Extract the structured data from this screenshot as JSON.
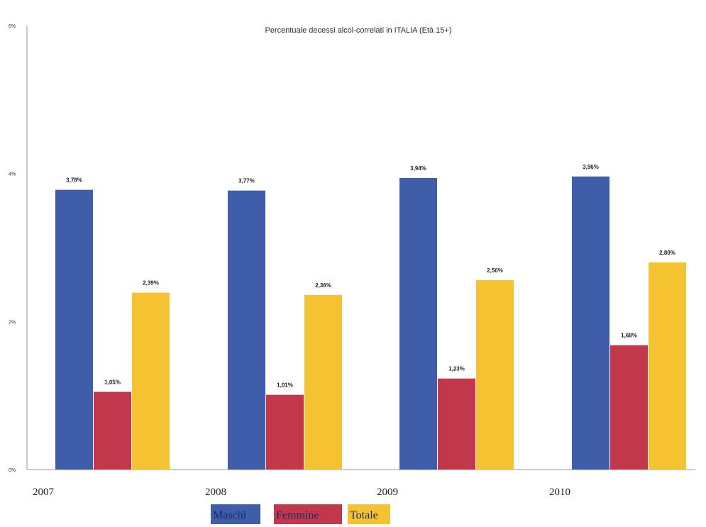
{
  "chart_data": {
    "type": "bar",
    "title": "Percentuale decessi alcol-correlati in ITALIA (Età 15+)",
    "xlabel": "",
    "ylabel": "",
    "categories": [
      "2007",
      "2008",
      "2009",
      "2010"
    ],
    "ylim": [
      0,
      6
    ],
    "yticks": [
      0,
      2,
      4,
      6
    ],
    "ytick_labels": [
      "0%",
      "2%",
      "4%",
      "6%"
    ],
    "grid": false,
    "legend_position": "bottom",
    "series": [
      {
        "name": "Maschi",
        "color": "#3f5da8",
        "values": [
          3.78,
          3.77,
          3.94,
          3.96
        ],
        "labels": [
          "3,78%",
          "3,77%",
          "3,94%",
          "3,96%"
        ]
      },
      {
        "name": "Femmine",
        "color": "#c0384a",
        "values": [
          1.05,
          1.01,
          1.23,
          1.68
        ],
        "labels": [
          "1,05%",
          "1,01%",
          "1,23%",
          "1,68%"
        ]
      },
      {
        "name": "Totale",
        "color": "#f5c232",
        "values": [
          2.39,
          2.36,
          2.56,
          2.8
        ],
        "labels": [
          "2,39%",
          "2,36%",
          "2,56%",
          "2,80%"
        ]
      }
    ]
  }
}
